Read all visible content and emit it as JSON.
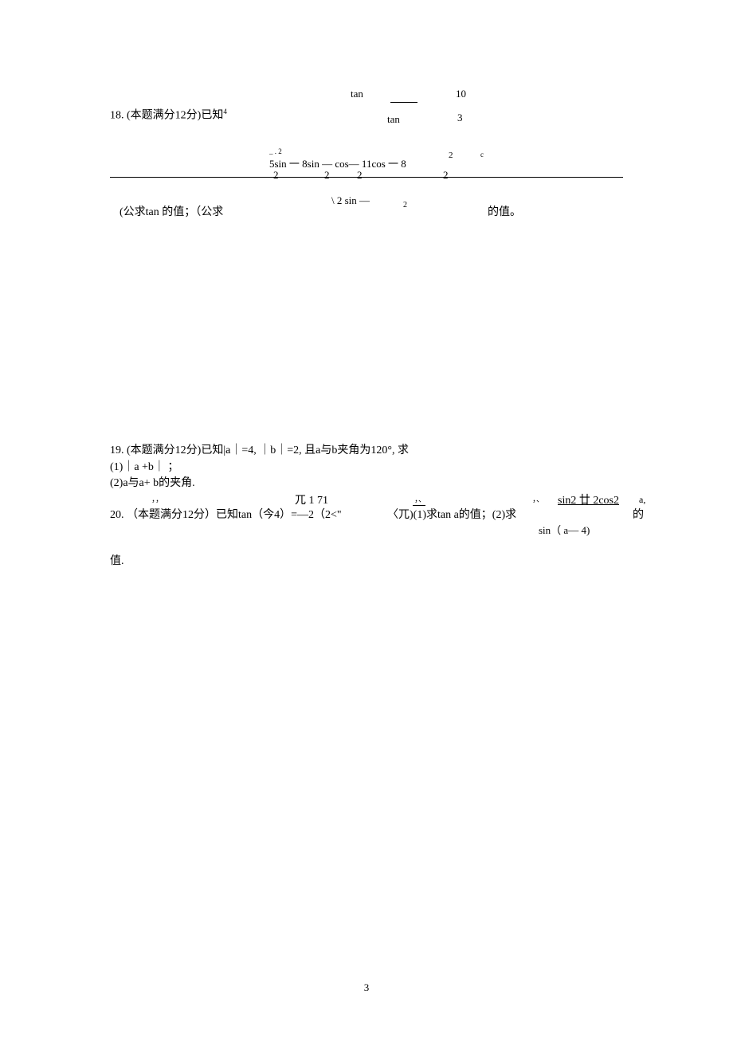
{
  "page_number": "3",
  "p18": {
    "tan_top": "tan",
    "ten": "10",
    "q_prefix": "18. (本题满分12分)已知",
    "sup4": "4",
    "tan_bot": "tan",
    "three": "3",
    "mid_sup": "_ . 2",
    "mid_2": "2",
    "mid_c": "c",
    "mid_eq": "5sin 一 8sin — cos— 11cos 一 8",
    "mid_d1": "2",
    "mid_d2": "2",
    "mid_d3": "2",
    "mid_d4": "2",
    "low_eq": "\\ 2 sin —",
    "low_2": "2",
    "low_txt": "(公求tan 的值；（公求",
    "low_val": "的值。"
  },
  "p19": {
    "l1": "19. (本题满分12分)已知|a｜=4, ｜b｜=2, 且a与b夹角为120°, 求",
    "l2": "(1)｜a +b｜ ；",
    "l3": "(2)a与a+ b的夹角."
  },
  "p20": {
    "tick1": "，，",
    "pi": "兀 1 71",
    "tick2": "，、",
    "tick3": "，、",
    "frac": "sin2 廿 2cos2",
    "a1": "a,",
    "main": "20. （本题满分12分）已知tan（今4）=—2（2<\"",
    "right": "〈兀)(1)求tan a的值；(2)求",
    "de": "的",
    "sin": "sin（ a— 4)",
    "val": "值."
  }
}
